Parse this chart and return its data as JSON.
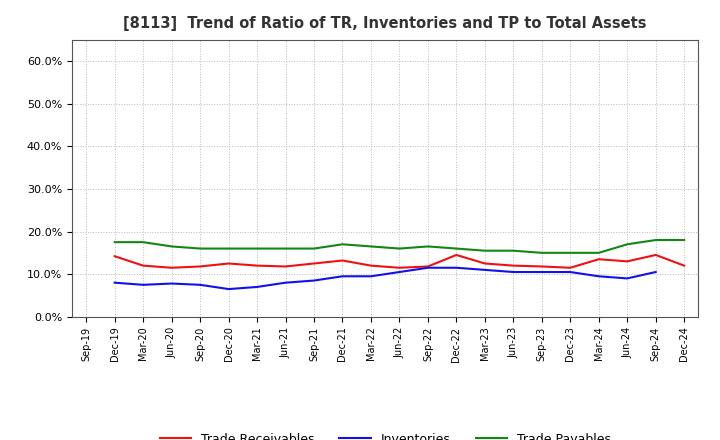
{
  "title": "[8113]  Trend of Ratio of TR, Inventories and TP to Total Assets",
  "x_labels": [
    "Sep-19",
    "Dec-19",
    "Mar-20",
    "Jun-20",
    "Sep-20",
    "Dec-20",
    "Mar-21",
    "Jun-21",
    "Sep-21",
    "Dec-21",
    "Mar-22",
    "Jun-22",
    "Sep-22",
    "Dec-22",
    "Mar-23",
    "Jun-23",
    "Sep-23",
    "Dec-23",
    "Mar-24",
    "Jun-24",
    "Sep-24",
    "Dec-24"
  ],
  "trade_receivables": [
    null,
    14.2,
    12.0,
    11.5,
    11.8,
    12.5,
    12.0,
    11.8,
    12.5,
    13.2,
    12.0,
    11.5,
    11.8,
    14.5,
    12.5,
    12.0,
    11.8,
    11.5,
    13.5,
    13.0,
    14.5,
    12.0
  ],
  "inventories": [
    null,
    8.0,
    7.5,
    7.8,
    7.5,
    6.5,
    7.0,
    8.0,
    8.5,
    9.5,
    9.5,
    10.5,
    11.5,
    11.5,
    11.0,
    10.5,
    10.5,
    10.5,
    9.5,
    9.0,
    10.5,
    null
  ],
  "trade_payables": [
    null,
    17.5,
    17.5,
    16.5,
    16.0,
    16.0,
    16.0,
    16.0,
    16.0,
    17.0,
    16.5,
    16.0,
    16.5,
    16.0,
    15.5,
    15.5,
    15.0,
    15.0,
    15.0,
    17.0,
    18.0,
    18.0
  ],
  "ylim": [
    0,
    65
  ],
  "yticks": [
    0,
    10,
    20,
    30,
    40,
    50,
    60
  ],
  "tr_color": "#ee1111",
  "inv_color": "#1111ee",
  "tp_color": "#118811",
  "background_color": "#ffffff",
  "grid_color": "#bbbbbb",
  "legend_labels": [
    "Trade Receivables",
    "Inventories",
    "Trade Payables"
  ]
}
